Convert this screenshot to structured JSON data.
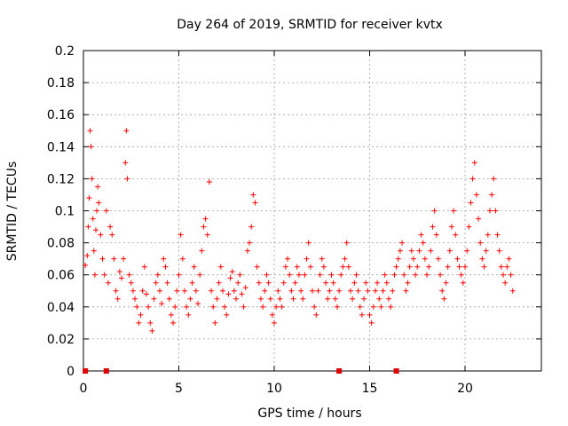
{
  "chart_data": {
    "type": "scatter",
    "title": "Day 264 of 2019, SRMTID for receiver kvtx",
    "xlabel": "GPS time / hours",
    "ylabel": "SRMTID / TECUs",
    "xlim": [
      0,
      24
    ],
    "ylim": [
      0,
      0.2
    ],
    "xticks": [
      0,
      5,
      10,
      15,
      20
    ],
    "xtick_labels": [
      "0",
      "5",
      "10",
      "15",
      "20"
    ],
    "yticks": [
      0,
      0.02,
      0.04,
      0.06,
      0.08,
      0.1,
      0.12,
      0.14,
      0.16,
      0.18,
      0.2
    ],
    "ytick_labels": [
      "0",
      "0.02",
      "0.04",
      "0.06",
      "0.08",
      "0.1",
      "0.12",
      "0.14",
      "0.16",
      "0.18",
      "0.2"
    ],
    "grid": true,
    "marker": "plus",
    "color": "#ff0000",
    "series": [
      {
        "name": "SRMTID",
        "zero_points_x": [
          0.1,
          1.2,
          13.4,
          16.4
        ],
        "points": [
          [
            0.1,
            0.066
          ],
          [
            0.2,
            0.072
          ],
          [
            0.25,
            0.09
          ],
          [
            0.3,
            0.108
          ],
          [
            0.35,
            0.15
          ],
          [
            0.4,
            0.14
          ],
          [
            0.45,
            0.12
          ],
          [
            0.5,
            0.095
          ],
          [
            0.55,
            0.075
          ],
          [
            0.6,
            0.06
          ],
          [
            0.65,
            0.088
          ],
          [
            0.7,
            0.1
          ],
          [
            0.75,
            0.115
          ],
          [
            0.8,
            0.105
          ],
          [
            0.9,
            0.085
          ],
          [
            1.0,
            0.07
          ],
          [
            1.1,
            0.06
          ],
          [
            1.2,
            0.1
          ],
          [
            1.3,
            0.055
          ],
          [
            1.4,
            0.09
          ],
          [
            1.5,
            0.085
          ],
          [
            1.6,
            0.07
          ],
          [
            1.7,
            0.05
          ],
          [
            1.8,
            0.045
          ],
          [
            1.9,
            0.062
          ],
          [
            2.0,
            0.058
          ],
          [
            2.1,
            0.07
          ],
          [
            2.2,
            0.13
          ],
          [
            2.25,
            0.15
          ],
          [
            2.3,
            0.12
          ],
          [
            2.4,
            0.06
          ],
          [
            2.5,
            0.055
          ],
          [
            2.6,
            0.05
          ],
          [
            2.7,
            0.045
          ],
          [
            2.8,
            0.04
          ],
          [
            2.9,
            0.03
          ],
          [
            3.0,
            0.035
          ],
          [
            3.1,
            0.05
          ],
          [
            3.2,
            0.065
          ],
          [
            3.3,
            0.048
          ],
          [
            3.4,
            0.04
          ],
          [
            3.5,
            0.03
          ],
          [
            3.6,
            0.025
          ],
          [
            3.7,
            0.045
          ],
          [
            3.8,
            0.055
          ],
          [
            3.9,
            0.06
          ],
          [
            4.0,
            0.05
          ],
          [
            4.1,
            0.042
          ],
          [
            4.2,
            0.07
          ],
          [
            4.3,
            0.065
          ],
          [
            4.4,
            0.055
          ],
          [
            4.5,
            0.045
          ],
          [
            4.6,
            0.035
          ],
          [
            4.7,
            0.03
          ],
          [
            4.8,
            0.04
          ],
          [
            4.9,
            0.05
          ],
          [
            5.0,
            0.06
          ],
          [
            5.1,
            0.085
          ],
          [
            5.2,
            0.07
          ],
          [
            5.3,
            0.05
          ],
          [
            5.4,
            0.04
          ],
          [
            5.5,
            0.035
          ],
          [
            5.6,
            0.045
          ],
          [
            5.7,
            0.055
          ],
          [
            5.8,
            0.065
          ],
          [
            5.9,
            0.05
          ],
          [
            6.0,
            0.042
          ],
          [
            6.1,
            0.06
          ],
          [
            6.2,
            0.075
          ],
          [
            6.3,
            0.09
          ],
          [
            6.4,
            0.095
          ],
          [
            6.5,
            0.085
          ],
          [
            6.6,
            0.118
          ],
          [
            6.7,
            0.05
          ],
          [
            6.8,
            0.04
          ],
          [
            6.9,
            0.03
          ],
          [
            7.0,
            0.045
          ],
          [
            7.1,
            0.055
          ],
          [
            7.2,
            0.065
          ],
          [
            7.3,
            0.05
          ],
          [
            7.4,
            0.04
          ],
          [
            7.5,
            0.035
          ],
          [
            7.6,
            0.048
          ],
          [
            7.7,
            0.058
          ],
          [
            7.8,
            0.062
          ],
          [
            7.9,
            0.05
          ],
          [
            8.0,
            0.045
          ],
          [
            8.1,
            0.055
          ],
          [
            8.2,
            0.06
          ],
          [
            8.3,
            0.048
          ],
          [
            8.4,
            0.04
          ],
          [
            8.5,
            0.052
          ],
          [
            8.6,
            0.075
          ],
          [
            8.7,
            0.08
          ],
          [
            8.8,
            0.09
          ],
          [
            8.9,
            0.11
          ],
          [
            9.0,
            0.105
          ],
          [
            9.1,
            0.065
          ],
          [
            9.2,
            0.055
          ],
          [
            9.3,
            0.045
          ],
          [
            9.4,
            0.04
          ],
          [
            9.5,
            0.05
          ],
          [
            9.6,
            0.06
          ],
          [
            9.7,
            0.055
          ],
          [
            9.8,
            0.045
          ],
          [
            9.9,
            0.035
          ],
          [
            10.0,
            0.03
          ],
          [
            10.1,
            0.04
          ],
          [
            10.2,
            0.05
          ],
          [
            10.3,
            0.045
          ],
          [
            10.4,
            0.04
          ],
          [
            10.5,
            0.055
          ],
          [
            10.6,
            0.065
          ],
          [
            10.7,
            0.07
          ],
          [
            10.8,
            0.06
          ],
          [
            10.9,
            0.05
          ],
          [
            11.0,
            0.045
          ],
          [
            11.1,
            0.055
          ],
          [
            11.2,
            0.065
          ],
          [
            11.3,
            0.06
          ],
          [
            11.4,
            0.05
          ],
          [
            11.5,
            0.045
          ],
          [
            11.6,
            0.06
          ],
          [
            11.7,
            0.07
          ],
          [
            11.8,
            0.08
          ],
          [
            11.9,
            0.065
          ],
          [
            12.0,
            0.05
          ],
          [
            12.1,
            0.04
          ],
          [
            12.2,
            0.035
          ],
          [
            12.3,
            0.05
          ],
          [
            12.4,
            0.06
          ],
          [
            12.5,
            0.07
          ],
          [
            12.6,
            0.065
          ],
          [
            12.7,
            0.055
          ],
          [
            12.8,
            0.045
          ],
          [
            12.9,
            0.05
          ],
          [
            13.0,
            0.06
          ],
          [
            13.1,
            0.055
          ],
          [
            13.2,
            0.045
          ],
          [
            13.3,
            0.04
          ],
          [
            13.4,
            0.05
          ],
          [
            13.5,
            0.06
          ],
          [
            13.6,
            0.065
          ],
          [
            13.7,
            0.07
          ],
          [
            13.8,
            0.08
          ],
          [
            13.9,
            0.065
          ],
          [
            14.0,
            0.05
          ],
          [
            14.1,
            0.045
          ],
          [
            14.2,
            0.055
          ],
          [
            14.3,
            0.06
          ],
          [
            14.4,
            0.05
          ],
          [
            14.5,
            0.04
          ],
          [
            14.6,
            0.035
          ],
          [
            14.7,
            0.045
          ],
          [
            14.8,
            0.055
          ],
          [
            14.9,
            0.05
          ],
          [
            15.0,
            0.035
          ],
          [
            15.1,
            0.03
          ],
          [
            15.2,
            0.04
          ],
          [
            15.3,
            0.05
          ],
          [
            15.4,
            0.055
          ],
          [
            15.5,
            0.045
          ],
          [
            15.6,
            0.04
          ],
          [
            15.7,
            0.05
          ],
          [
            15.8,
            0.06
          ],
          [
            15.9,
            0.055
          ],
          [
            16.0,
            0.045
          ],
          [
            16.1,
            0.04
          ],
          [
            16.2,
            0.05
          ],
          [
            16.3,
            0.06
          ],
          [
            16.4,
            0.065
          ],
          [
            16.5,
            0.07
          ],
          [
            16.6,
            0.075
          ],
          [
            16.7,
            0.08
          ],
          [
            16.8,
            0.06
          ],
          [
            16.9,
            0.05
          ],
          [
            17.0,
            0.055
          ],
          [
            17.1,
            0.065
          ],
          [
            17.2,
            0.075
          ],
          [
            17.3,
            0.07
          ],
          [
            17.4,
            0.06
          ],
          [
            17.5,
            0.065
          ],
          [
            17.6,
            0.075
          ],
          [
            17.7,
            0.085
          ],
          [
            17.8,
            0.08
          ],
          [
            17.9,
            0.07
          ],
          [
            18.0,
            0.06
          ],
          [
            18.1,
            0.065
          ],
          [
            18.2,
            0.075
          ],
          [
            18.3,
            0.09
          ],
          [
            18.4,
            0.1
          ],
          [
            18.5,
            0.085
          ],
          [
            18.6,
            0.07
          ],
          [
            18.7,
            0.06
          ],
          [
            18.8,
            0.05
          ],
          [
            18.9,
            0.045
          ],
          [
            19.0,
            0.055
          ],
          [
            19.1,
            0.065
          ],
          [
            19.2,
            0.075
          ],
          [
            19.3,
            0.09
          ],
          [
            19.4,
            0.1
          ],
          [
            19.5,
            0.085
          ],
          [
            19.6,
            0.07
          ],
          [
            19.7,
            0.065
          ],
          [
            19.8,
            0.06
          ],
          [
            19.9,
            0.055
          ],
          [
            20.0,
            0.065
          ],
          [
            20.1,
            0.075
          ],
          [
            20.2,
            0.09
          ],
          [
            20.3,
            0.105
          ],
          [
            20.4,
            0.12
          ],
          [
            20.5,
            0.13
          ],
          [
            20.6,
            0.11
          ],
          [
            20.7,
            0.095
          ],
          [
            20.8,
            0.08
          ],
          [
            20.9,
            0.07
          ],
          [
            21.0,
            0.065
          ],
          [
            21.1,
            0.075
          ],
          [
            21.2,
            0.085
          ],
          [
            21.3,
            0.1
          ],
          [
            21.4,
            0.11
          ],
          [
            21.5,
            0.12
          ],
          [
            21.6,
            0.1
          ],
          [
            21.7,
            0.085
          ],
          [
            21.8,
            0.075
          ],
          [
            21.9,
            0.065
          ],
          [
            22.0,
            0.06
          ],
          [
            22.1,
            0.055
          ],
          [
            22.2,
            0.065
          ],
          [
            22.3,
            0.07
          ],
          [
            22.4,
            0.06
          ],
          [
            22.5,
            0.05
          ]
        ]
      }
    ]
  }
}
